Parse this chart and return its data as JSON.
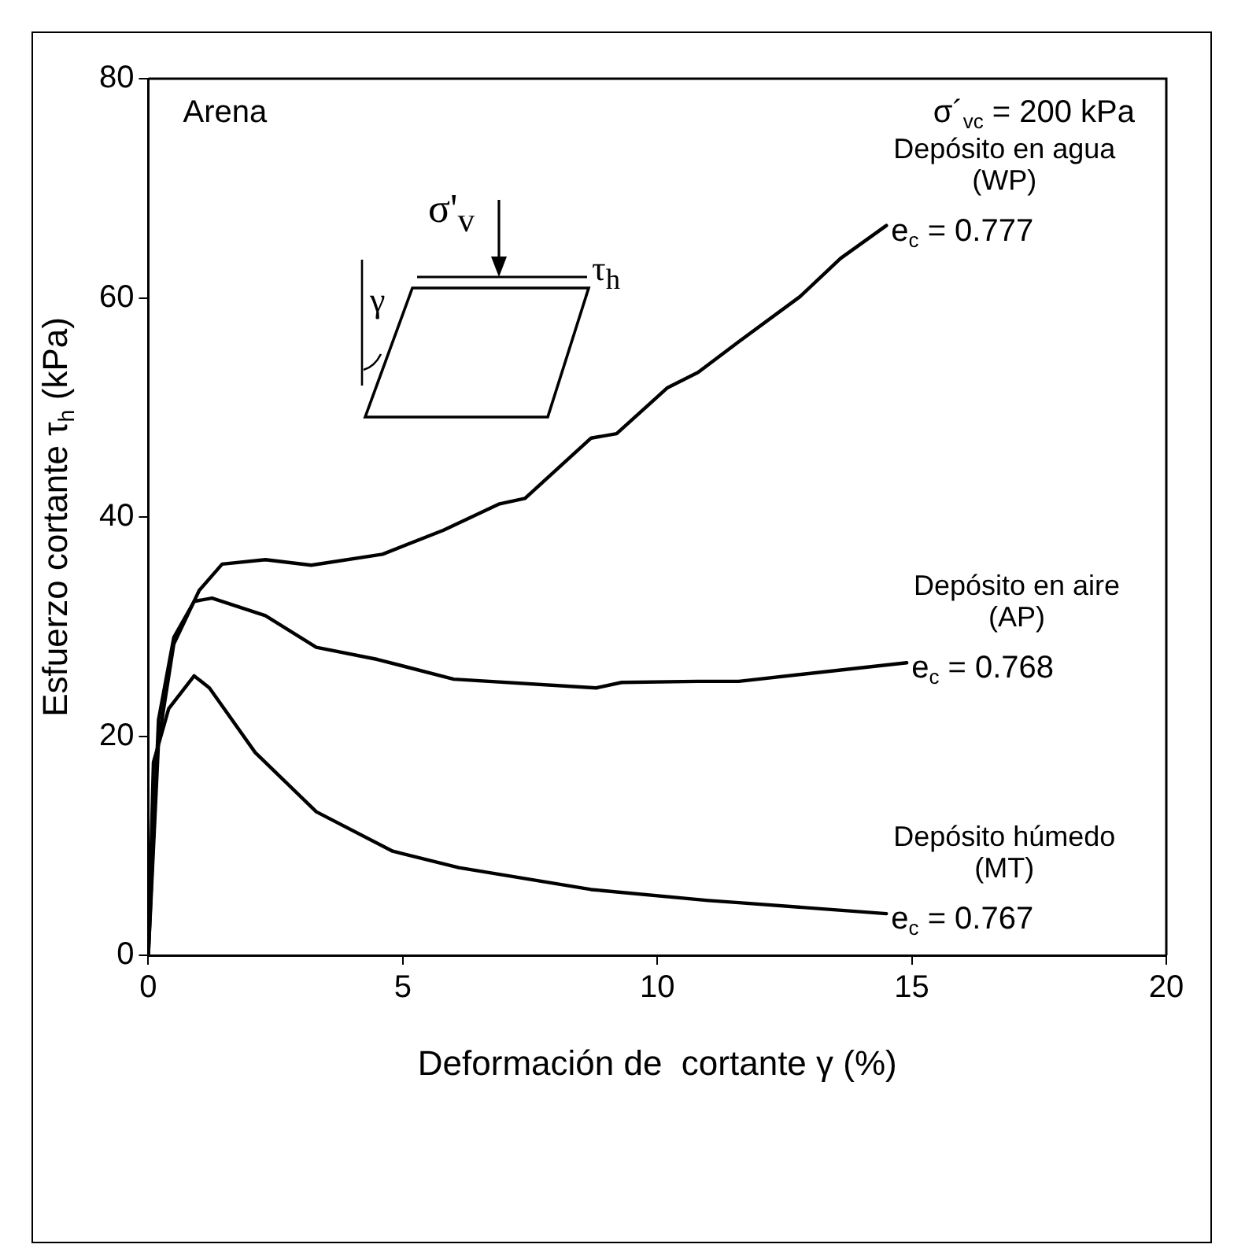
{
  "chart_data": {
    "type": "line",
    "xlabel": "Deformación de  cortante γ (%)",
    "ylabel": "Esfuerzo cortante τ$_{h}$ (kPa)",
    "xlim": [
      0,
      20
    ],
    "xticks": [
      0,
      5,
      10,
      15,
      20
    ],
    "ylim": [
      0,
      80
    ],
    "yticks": [
      0,
      20,
      40,
      60,
      80
    ],
    "grid": false,
    "legend": false,
    "marker": "none",
    "line_style": "solid",
    "series": [
      {
        "name": "Depósito en agua (WP)",
        "color": "#000000",
        "x": [
          0,
          0.2,
          0.5,
          1.0,
          1.45,
          2.3,
          3.2,
          4.6,
          5.8,
          6.9,
          7.4,
          8.7,
          9.2,
          10.2,
          10.8,
          11.6,
          12.8,
          13.6,
          14.5
        ],
        "values": [
          0,
          19.5,
          28.4,
          33.3,
          35.7,
          36.1,
          35.6,
          36.6,
          38.8,
          41.2,
          41.7,
          47.2,
          47.6,
          51.8,
          53.2,
          56,
          60.1,
          63.6,
          66.6
        ]
      },
      {
        "name": "Depósito en aire (AP)",
        "color": "#000000",
        "x": [
          0,
          0.2,
          0.5,
          0.9,
          1.25,
          2.3,
          3.3,
          4.5,
          6.0,
          8.8,
          9.3,
          10.8,
          11.6,
          14.9
        ],
        "values": [
          0,
          21.5,
          29,
          32.3,
          32.6,
          31.0,
          28.1,
          27.0,
          25.2,
          24.4,
          24.9,
          25.0,
          25.0,
          26.7
        ]
      },
      {
        "name": "Depósito húmedo (MT)",
        "color": "#000000",
        "x": [
          0,
          0.1,
          0.4,
          0.9,
          1.2,
          2.1,
          3.3,
          4.8,
          6.1,
          8.7,
          11.0,
          11.6,
          14.5
        ],
        "values": [
          0,
          17.6,
          22.5,
          25.5,
          24.4,
          18.5,
          13.1,
          9.5,
          8.0,
          6.0,
          5.0,
          4.8,
          3.8
        ]
      }
    ],
    "annotations": [
      "Arena",
      "σ´$_{vc}$ = 200 kPa",
      "σ'$_{v}$",
      "τ$_{h}$",
      "γ",
      "e$_{c}$ = 0.777",
      "e$_{c}$ = 0.768",
      "e$_{c}$ = 0.767"
    ]
  }
}
